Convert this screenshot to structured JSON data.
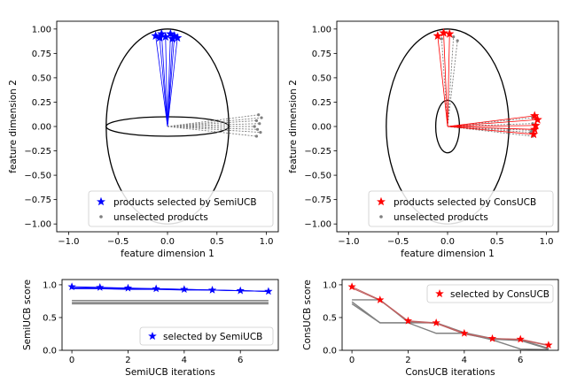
{
  "colors": {
    "semi": "#0000ff",
    "cons": "#ff0000",
    "unsel": "#808080",
    "axis": "#000000"
  },
  "chart_data": [
    {
      "id": "semi-scatter",
      "type": "scatter",
      "xlabel": "feature dimension 1",
      "ylabel": "feature dimension 2",
      "xlim": [
        -1.12,
        1.12
      ],
      "ylim": [
        -1.08,
        1.08
      ],
      "xticks": [
        -1.0,
        -0.5,
        0.0,
        0.5,
        1.0
      ],
      "xtick_labels": [
        "−1.0",
        "−0.5",
        "0.0",
        "0.5",
        "1.0"
      ],
      "yticks": [
        -1.0,
        -0.75,
        -0.5,
        -0.25,
        0.0,
        0.25,
        0.5,
        0.75,
        1.0
      ],
      "ytick_labels": [
        "−1.00",
        "−0.75",
        "−0.50",
        "−0.25",
        "0.00",
        "0.25",
        "0.50",
        "0.75",
        "1.00"
      ],
      "ellipses": [
        {
          "cx": 0.0,
          "cy": 0.0,
          "rx": 0.62,
          "ry": 1.0
        },
        {
          "cx": 0.0,
          "cy": 0.0,
          "rx": 0.62,
          "ry": 0.1
        }
      ],
      "selected": {
        "name": "products selected by SemiUCB",
        "points": [
          [
            -0.12,
            0.93
          ],
          [
            -0.06,
            0.95
          ],
          [
            -0.02,
            0.92
          ],
          [
            0.03,
            0.95
          ],
          [
            0.07,
            0.93
          ],
          [
            0.1,
            0.91
          ],
          [
            -0.08,
            0.91
          ],
          [
            0.05,
            0.9
          ]
        ]
      },
      "unselected": {
        "name": "unselected products",
        "points": [
          [
            0.92,
            0.12
          ],
          [
            0.95,
            0.09
          ],
          [
            0.9,
            0.06
          ],
          [
            0.93,
            0.03
          ],
          [
            0.88,
            0.0
          ],
          [
            0.91,
            -0.03
          ],
          [
            0.94,
            -0.06
          ],
          [
            0.9,
            -0.1
          ]
        ]
      },
      "legend": "bottom-right"
    },
    {
      "id": "cons-scatter",
      "type": "scatter",
      "xlabel": "feature dimension 1",
      "ylabel": "feature dimension 2",
      "xlim": [
        -1.12,
        1.12
      ],
      "ylim": [
        -1.08,
        1.08
      ],
      "xticks": [
        -1.0,
        -0.5,
        0.0,
        0.5,
        1.0
      ],
      "xtick_labels": [
        "−1.0",
        "−0.5",
        "0.0",
        "0.5",
        "1.0"
      ],
      "yticks": [
        -1.0,
        -0.75,
        -0.5,
        -0.25,
        0.0,
        0.25,
        0.5,
        0.75,
        1.0
      ],
      "ytick_labels": [
        "−1.00",
        "−0.75",
        "−0.50",
        "−0.25",
        "0.00",
        "0.25",
        "0.50",
        "0.75",
        "1.00"
      ],
      "ellipses": [
        {
          "cx": 0.0,
          "cy": 0.0,
          "rx": 0.62,
          "ry": 1.0
        },
        {
          "cx": 0.0,
          "cy": 0.0,
          "rx": 0.12,
          "ry": 0.27
        }
      ],
      "selected": {
        "name": "products selected by ConsUCB",
        "points": [
          [
            -0.1,
            0.93
          ],
          [
            -0.04,
            0.96
          ],
          [
            0.02,
            0.95
          ],
          [
            0.88,
            0.11
          ],
          [
            0.91,
            0.07
          ],
          [
            0.89,
            0.01
          ],
          [
            0.88,
            -0.03
          ],
          [
            0.87,
            -0.08
          ]
        ]
      },
      "unselected": {
        "name": "unselected products",
        "points": [
          [
            0.06,
            0.92
          ],
          [
            0.1,
            0.88
          ],
          [
            -0.06,
            0.9
          ],
          [
            0.86,
            0.09
          ],
          [
            0.86,
            0.03
          ],
          [
            0.85,
            -0.04
          ],
          [
            0.86,
            -0.1
          ],
          [
            0.84,
            -0.06
          ]
        ]
      },
      "legend": "bottom-right"
    },
    {
      "id": "semi-score",
      "type": "line",
      "xlabel": "SemiUCB iterations",
      "ylabel": "SemiUCB score",
      "xlim": [
        -0.35,
        7.35
      ],
      "ylim": [
        0.0,
        1.08
      ],
      "xticks": [
        0,
        2,
        4,
        6
      ],
      "xtick_labels": [
        "0",
        "2",
        "4",
        "6"
      ],
      "yticks": [
        0.0,
        0.5,
        1.0
      ],
      "ytick_labels": [
        "0.0",
        "0.5",
        "1.0"
      ],
      "selected_series": {
        "name": "selected by SemiUCB",
        "x": [
          0,
          1,
          2,
          3,
          4,
          5,
          6,
          7
        ],
        "y": [
          0.97,
          0.96,
          0.95,
          0.94,
          0.93,
          0.92,
          0.91,
          0.9
        ]
      },
      "selected_lines": [
        [
          0.97,
          0.96,
          0.95,
          0.94,
          0.93,
          0.92,
          0.91,
          0.9
        ],
        [
          0.95,
          0.95,
          0.94,
          0.94,
          0.93,
          0.92,
          0.91,
          0.9
        ],
        [
          0.94,
          0.94,
          0.93,
          0.93,
          0.92,
          0.92,
          0.91,
          0.9
        ]
      ],
      "unselected_lines": [
        [
          0.76,
          0.76,
          0.76,
          0.76,
          0.76,
          0.76,
          0.76,
          0.76
        ],
        [
          0.73,
          0.73,
          0.73,
          0.73,
          0.73,
          0.73,
          0.73,
          0.73
        ],
        [
          0.71,
          0.71,
          0.71,
          0.71,
          0.71,
          0.71,
          0.71,
          0.71
        ]
      ],
      "legend": "bottom-right"
    },
    {
      "id": "cons-score",
      "type": "line",
      "xlabel": "ConsUCB iterations",
      "ylabel": "ConsUCB score",
      "xlim": [
        -0.35,
        7.35
      ],
      "ylim": [
        0.0,
        1.08
      ],
      "xticks": [
        0,
        2,
        4,
        6
      ],
      "xtick_labels": [
        "0",
        "2",
        "4",
        "6"
      ],
      "yticks": [
        0.0,
        0.5,
        1.0
      ],
      "ytick_labels": [
        "0.0",
        "0.5",
        "1.0"
      ],
      "selected_series": {
        "name": "selected by ConsUCB",
        "x": [
          0,
          1,
          2,
          3,
          4,
          5,
          6,
          7
        ],
        "y": [
          0.97,
          0.77,
          0.45,
          0.42,
          0.26,
          0.18,
          0.17,
          0.08
        ]
      },
      "selected_lines": [
        [
          0.97,
          0.77,
          0.45,
          0.42,
          0.26,
          0.18,
          0.17,
          0.08
        ],
        [
          0.95,
          0.76,
          0.44,
          0.41,
          0.25,
          0.18,
          0.16,
          0.07
        ]
      ],
      "unselected_lines": [
        [
          0.77,
          0.77,
          0.43,
          0.42,
          0.27,
          0.18,
          0.16,
          0.03
        ],
        [
          0.74,
          0.42,
          0.42,
          0.42,
          0.25,
          0.17,
          0.15,
          0.02
        ],
        [
          0.71,
          0.42,
          0.42,
          0.26,
          0.26,
          0.16,
          0.02,
          0.01
        ]
      ],
      "legend": "top-right"
    }
  ]
}
